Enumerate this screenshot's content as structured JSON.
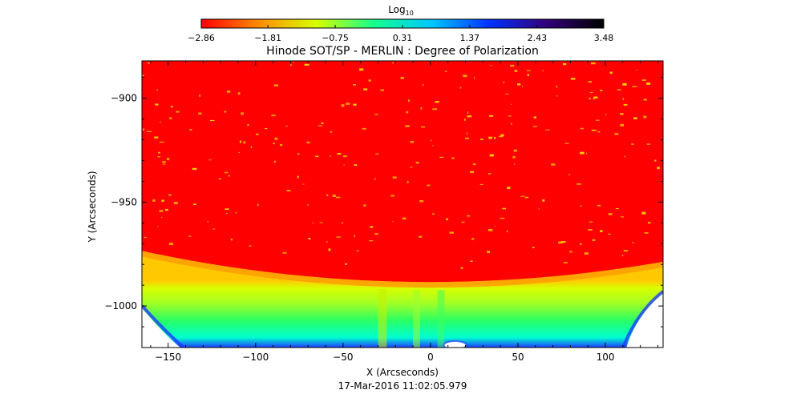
{
  "chart_data": {
    "type": "heatmap",
    "title": "Hinode SOT/SP - MERLIN : Degree of Polarization",
    "xlabel": "X (Arcseconds)",
    "ylabel": "Y (Arcseconds)",
    "xlim": [
      -165,
      133
    ],
    "ylim": [
      -1020,
      -882
    ],
    "x_ticks": [
      -150,
      -100,
      -50,
      0,
      50,
      100
    ],
    "x_tick_labels": [
      "−150",
      "−100",
      "−50",
      "0",
      "50",
      "100"
    ],
    "y_ticks": [
      -900,
      -950,
      -1000
    ],
    "y_tick_labels": [
      "−900",
      "−950",
      "−1000"
    ],
    "colorbar": {
      "label_base": "Log",
      "label_sub": "10",
      "ticks": [
        -2.86,
        -1.81,
        -0.75,
        0.31,
        1.37,
        2.43,
        3.48
      ],
      "tick_labels": [
        "−2.86",
        "−1.81",
        "−0.75",
        "0.31",
        "1.37",
        "2.43",
        "3.48"
      ],
      "colors": [
        "#ff0000",
        "#ff8c00",
        "#d8ff00",
        "#14ff8c",
        "#00c8ff",
        "#0032ff",
        "#32007a",
        "#000000"
      ]
    },
    "background_color": "#ff0000",
    "limb_region_colors": [
      "#ffc800",
      "#d8ff00",
      "#a0ff28",
      "#28ff64",
      "#00ffd0",
      "#1e3cff"
    ],
    "footer": "17-Mar-2016 11:02:05.979"
  }
}
